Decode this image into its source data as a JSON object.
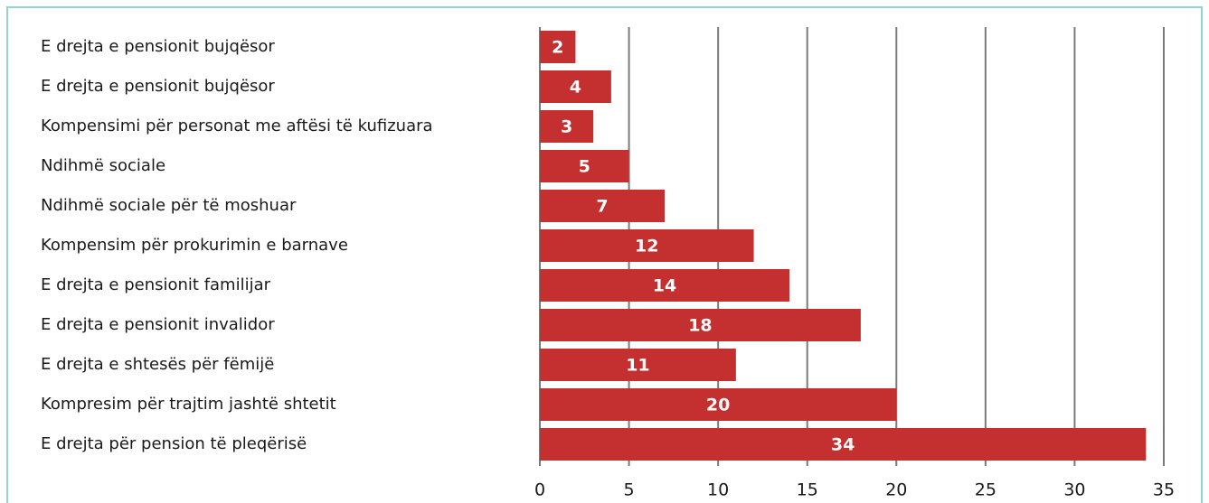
{
  "chart_data": {
    "type": "bar",
    "orientation": "horizontal",
    "categories": [
      "E drejta e pensionit bujqësor",
      "E drejta e pensionit bujqësor",
      "Kompensimi për personat me aftësi të kufizuara",
      "Ndihmë sociale",
      "Ndihmë sociale për të moshuar",
      "Kompensim për prokurimin e barnave",
      "E drejta e pensionit familijar",
      "E drejta e pensionit invalidor",
      "E drejta e shtesës për fëmijë",
      "Kompresim për trajtim jashtë shtetit",
      "E drejta për pension të pleqërisë"
    ],
    "values": [
      2,
      4,
      3,
      5,
      7,
      12,
      14,
      18,
      11,
      20,
      34
    ],
    "color": "#c42f2f",
    "xlim": [
      0,
      35
    ],
    "xticks": [
      0,
      5,
      10,
      15,
      20,
      25,
      30,
      35
    ],
    "grid": true
  }
}
